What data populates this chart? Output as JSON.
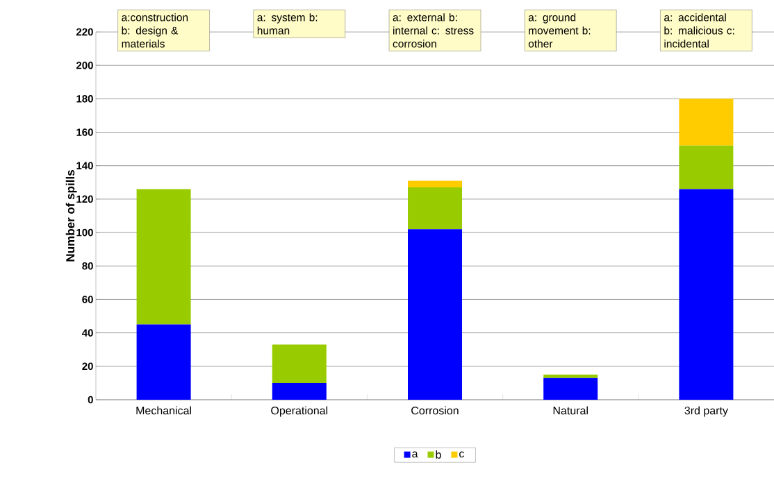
{
  "chart_data": {
    "type": "bar",
    "stacked": true,
    "ylabel": "Number of spills",
    "categories": [
      "Mechanical",
      "Operational",
      "Corrosion",
      "Natural",
      "3rd party"
    ],
    "series": [
      {
        "name": "a",
        "color": "#0000ff",
        "values": [
          45,
          10,
          102,
          13,
          126
        ]
      },
      {
        "name": "b",
        "color": "#99cc00",
        "values": [
          81,
          23,
          25,
          2,
          26
        ]
      },
      {
        "name": "c",
        "color": "#ffcc00",
        "values": [
          null,
          null,
          4,
          null,
          28
        ]
      }
    ],
    "annotations": [
      "a:construction b: design & materials",
      "a: system b: human",
      "a: external b: internal c: stress corrosion",
      "a: ground movement b: other",
      "a: accidental b: malicious c: incidental"
    ],
    "ylim": [
      0,
      220
    ],
    "yticks": [
      0,
      20,
      40,
      60,
      80,
      100,
      120,
      140,
      160,
      180,
      200,
      220
    ],
    "grid": "y",
    "legend": "bottom"
  }
}
